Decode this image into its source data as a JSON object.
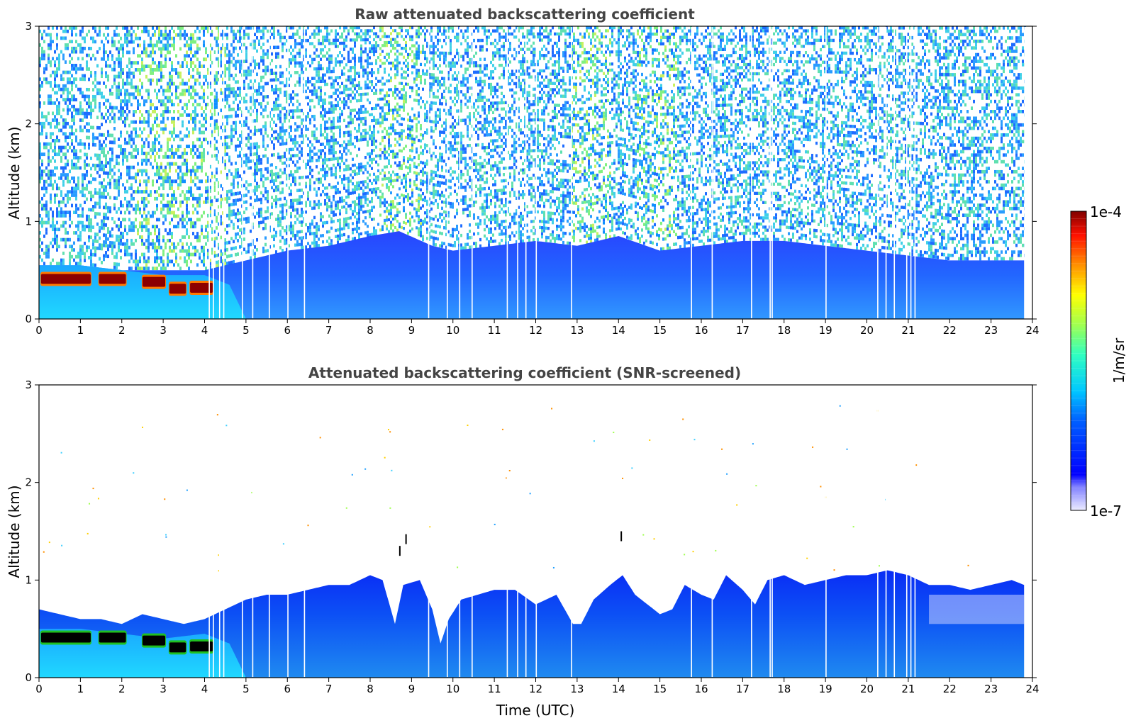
{
  "chart_data": [
    {
      "type": "heatmap",
      "title": "Raw attenuated backscattering coefficient",
      "xlabel": "",
      "ylabel": "Altitude (km)",
      "xlim": [
        0,
        24
      ],
      "ylim": [
        0,
        3
      ],
      "xticks": [
        "0",
        "1",
        "2",
        "3",
        "4",
        "5",
        "6",
        "7",
        "8",
        "9",
        "10",
        "11",
        "12",
        "13",
        "14",
        "15",
        "16",
        "17",
        "18",
        "19",
        "20",
        "21",
        "22",
        "23",
        "24"
      ],
      "yticks": [
        "0",
        "1",
        "2",
        "3"
      ],
      "boundary_layer_top_km": [
        [
          0,
          0.55
        ],
        [
          1,
          0.55
        ],
        [
          2,
          0.5
        ],
        [
          3,
          0.5
        ],
        [
          4,
          0.5
        ],
        [
          5,
          0.6
        ],
        [
          6,
          0.7
        ],
        [
          7,
          0.75
        ],
        [
          8,
          0.85
        ],
        [
          8.7,
          0.9
        ],
        [
          9.5,
          0.75
        ],
        [
          10,
          0.7
        ],
        [
          11,
          0.75
        ],
        [
          12,
          0.8
        ],
        [
          13,
          0.75
        ],
        [
          14,
          0.85
        ],
        [
          15,
          0.7
        ],
        [
          16,
          0.75
        ],
        [
          17,
          0.8
        ],
        [
          18,
          0.8
        ],
        [
          19,
          0.75
        ],
        [
          20,
          0.7
        ],
        [
          21,
          0.65
        ],
        [
          22,
          0.6
        ],
        [
          23,
          0.6
        ],
        [
          23.8,
          0.6
        ]
      ],
      "cloud_layer": {
        "x_start": 0.0,
        "x_end": 4.2,
        "altitude_km": 0.42,
        "value": "1e-4"
      },
      "data_end_hour": 23.8
    },
    {
      "type": "heatmap",
      "title": "Attenuated backscattering coefficient (SNR-screened)",
      "xlabel": "Time (UTC)",
      "ylabel": "Altitude (km)",
      "xlim": [
        0,
        24
      ],
      "ylim": [
        0,
        3
      ],
      "xticks": [
        "0",
        "1",
        "2",
        "3",
        "4",
        "5",
        "6",
        "7",
        "8",
        "9",
        "10",
        "11",
        "12",
        "13",
        "14",
        "15",
        "16",
        "17",
        "18",
        "19",
        "20",
        "21",
        "22",
        "23",
        "24"
      ],
      "yticks": [
        "0",
        "1",
        "2",
        "3"
      ],
      "valid_signal_top_km": [
        [
          0,
          0.7
        ],
        [
          0.5,
          0.65
        ],
        [
          1,
          0.6
        ],
        [
          1.5,
          0.6
        ],
        [
          2,
          0.55
        ],
        [
          2.5,
          0.65
        ],
        [
          3,
          0.6
        ],
        [
          3.5,
          0.55
        ],
        [
          4,
          0.6
        ],
        [
          4.5,
          0.7
        ],
        [
          5,
          0.8
        ],
        [
          5.5,
          0.85
        ],
        [
          6,
          0.85
        ],
        [
          6.5,
          0.9
        ],
        [
          7,
          0.95
        ],
        [
          7.5,
          0.95
        ],
        [
          8,
          1.05
        ],
        [
          8.3,
          1.0
        ],
        [
          8.6,
          0.55
        ],
        [
          8.8,
          0.95
        ],
        [
          9.2,
          1.0
        ],
        [
          9.5,
          0.7
        ],
        [
          9.7,
          0.35
        ],
        [
          9.9,
          0.6
        ],
        [
          10.2,
          0.8
        ],
        [
          10.6,
          0.85
        ],
        [
          11,
          0.9
        ],
        [
          11.5,
          0.9
        ],
        [
          12,
          0.75
        ],
        [
          12.5,
          0.85
        ],
        [
          12.9,
          0.55
        ],
        [
          13.1,
          0.55
        ],
        [
          13.4,
          0.8
        ],
        [
          13.8,
          0.95
        ],
        [
          14.1,
          1.05
        ],
        [
          14.4,
          0.85
        ],
        [
          14.7,
          0.75
        ],
        [
          15.0,
          0.65
        ],
        [
          15.3,
          0.7
        ],
        [
          15.6,
          0.95
        ],
        [
          16.0,
          0.85
        ],
        [
          16.3,
          0.8
        ],
        [
          16.6,
          1.05
        ],
        [
          17.0,
          0.9
        ],
        [
          17.3,
          0.75
        ],
        [
          17.6,
          1.0
        ],
        [
          18,
          1.05
        ],
        [
          18.5,
          0.95
        ],
        [
          19,
          1.0
        ],
        [
          19.5,
          1.05
        ],
        [
          20,
          1.05
        ],
        [
          20.5,
          1.1
        ],
        [
          21,
          1.05
        ],
        [
          21.5,
          0.95
        ],
        [
          22,
          0.95
        ],
        [
          22.5,
          0.9
        ],
        [
          23,
          0.95
        ],
        [
          23.5,
          1.0
        ],
        [
          23.8,
          0.95
        ]
      ],
      "cloud_layer": {
        "x_start": 0.0,
        "x_end": 4.2,
        "altitude_km": 0.42,
        "value": "above range"
      },
      "data_end_hour": 23.8
    }
  ],
  "colorbar": {
    "label": "1/m/sr",
    "max_label": "1e-4",
    "min_label": "1e-7",
    "colormap": "jet",
    "scale": "log",
    "min": 1e-07,
    "max": 0.0001
  }
}
